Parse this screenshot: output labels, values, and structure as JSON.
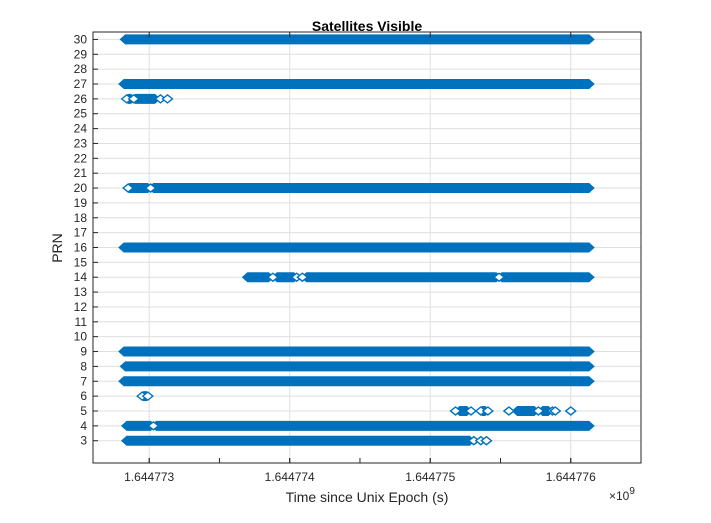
{
  "chart_data": {
    "type": "scatter",
    "title": "Satellites Visible",
    "xlabel": "Time since Unix Epoch (s)",
    "ylabel": "PRN",
    "x_exponent_label": "×10",
    "x_exponent_power": "9",
    "xlim": [
      1644772.6,
      1644776.5
    ],
    "ylim": [
      1.5,
      30.5
    ],
    "x_ticks": [
      1644773,
      1644774,
      1644775,
      1644776
    ],
    "x_tick_labels": [
      "1.644773",
      "1.644774",
      "1.644775",
      "1.644776"
    ],
    "y_ticks": [
      3,
      4,
      5,
      6,
      7,
      8,
      9,
      10,
      11,
      12,
      13,
      14,
      15,
      16,
      17,
      18,
      19,
      20,
      21,
      22,
      23,
      24,
      25,
      26,
      27,
      28,
      29,
      30
    ],
    "grid": true,
    "marker": "diamond",
    "color": "#0072BD",
    "series": [
      {
        "prn": 30,
        "segments": [
          [
            1644772.83,
            1644776.13
          ]
        ],
        "points": []
      },
      {
        "prn": 27,
        "segments": [
          [
            1644772.82,
            1644776.13
          ]
        ],
        "points": []
      },
      {
        "prn": 26,
        "segments": [
          [
            1644772.85,
            1644772.87
          ],
          [
            1644772.9,
            1644773.04
          ]
        ],
        "points": [
          1644772.84,
          1644772.89,
          1644773.08,
          1644773.13
        ]
      },
      {
        "prn": 20,
        "segments": [
          [
            1644772.86,
            1644772.99
          ],
          [
            1644773.03,
            1644776.13
          ]
        ],
        "points": [
          1644772.85,
          1644773.01
        ]
      },
      {
        "prn": 16,
        "segments": [
          [
            1644772.82,
            1644776.13
          ]
        ],
        "points": []
      },
      {
        "prn": 14,
        "segments": [
          [
            1644773.7,
            1644773.85
          ],
          [
            1644773.91,
            1644774.03
          ],
          [
            1644774.12,
            1644775.47
          ],
          [
            1644775.51,
            1644776.13
          ]
        ],
        "points": [
          1644773.88,
          1644774.05,
          1644774.09,
          1644775.49
        ]
      },
      {
        "prn": 9,
        "segments": [
          [
            1644772.82,
            1644776.13
          ]
        ],
        "points": []
      },
      {
        "prn": 8,
        "segments": [
          [
            1644772.83,
            1644776.13
          ]
        ],
        "points": []
      },
      {
        "prn": 7,
        "segments": [
          [
            1644772.82,
            1644776.13
          ]
        ],
        "points": []
      },
      {
        "prn": 6,
        "segments": [
          [
            1644772.96,
            1644772.98
          ]
        ],
        "points": [
          1644772.95,
          1644772.99
        ]
      },
      {
        "prn": 5,
        "segments": [
          [
            1644775.21,
            1644775.26
          ],
          [
            1644775.37,
            1644775.39
          ],
          [
            1644775.62,
            1644775.74
          ],
          [
            1644775.8,
            1644775.84
          ]
        ],
        "points": [
          1644775.18,
          1644775.29,
          1644775.36,
          1644775.41,
          1644775.56,
          1644775.77,
          1644775.87,
          1644775.89,
          1644776.0
        ]
      },
      {
        "prn": 4,
        "segments": [
          [
            1644772.84,
            1644773.01
          ],
          [
            1644773.05,
            1644776.13
          ]
        ],
        "points": [
          1644773.03
        ]
      },
      {
        "prn": 3,
        "segments": [
          [
            1644772.84,
            1644775.28
          ]
        ],
        "points": [
          1644775.31,
          1644775.36,
          1644775.4
        ]
      }
    ]
  }
}
